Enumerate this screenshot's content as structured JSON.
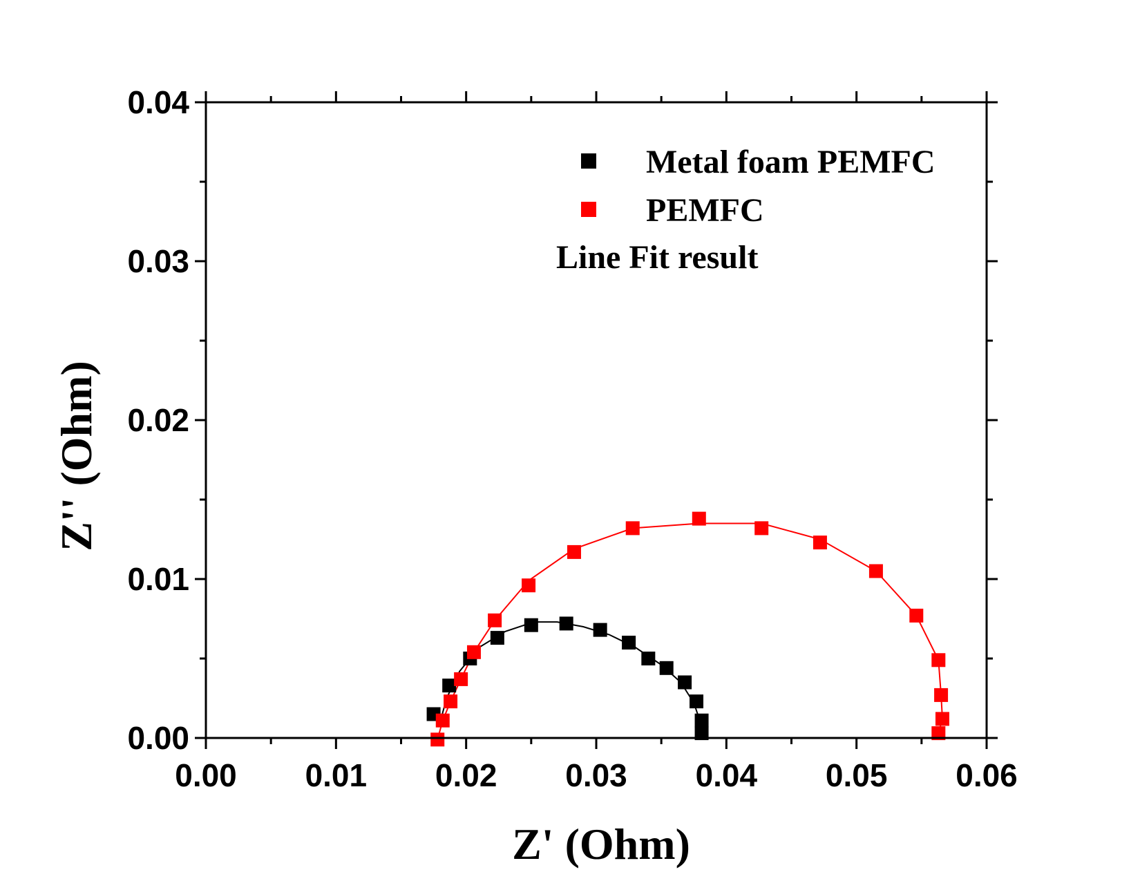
{
  "chart_data": {
    "type": "scatter",
    "title": "",
    "xlabel": "Z' (Ohm)",
    "ylabel": "Z'' (Ohm)",
    "xlim": [
      0,
      0.06
    ],
    "ylim": [
      0,
      0.04
    ],
    "x_ticks": [
      "0.00",
      "0.01",
      "0.02",
      "0.03",
      "0.04",
      "0.05",
      "0.06"
    ],
    "y_ticks": [
      "0.00",
      "0.01",
      "0.02",
      "0.03",
      "0.04"
    ],
    "grid": false,
    "legend_position": "top-right",
    "legend": {
      "entries": [
        "Metal  foam PEMFC",
        "PEMFC",
        "Line  Fit result"
      ]
    },
    "series": [
      {
        "name": "Metal  foam PEMFC",
        "color": "#000000",
        "marker": "square",
        "points": [
          [
            0.0175,
            0.0015
          ],
          [
            0.0187,
            0.0033
          ],
          [
            0.0203,
            0.005
          ],
          [
            0.0224,
            0.0063
          ],
          [
            0.025,
            0.0071
          ],
          [
            0.0277,
            0.0072
          ],
          [
            0.0303,
            0.0068
          ],
          [
            0.0325,
            0.006
          ],
          [
            0.034,
            0.005
          ],
          [
            0.0354,
            0.0044
          ],
          [
            0.0368,
            0.0035
          ],
          [
            0.0377,
            0.0023
          ],
          [
            0.0381,
            0.0011
          ],
          [
            0.0381,
            0.0003
          ]
        ],
        "fit": [
          [
            0.018,
            0.001
          ],
          [
            0.0185,
            0.0025
          ],
          [
            0.0195,
            0.0042
          ],
          [
            0.021,
            0.0057
          ],
          [
            0.023,
            0.0067
          ],
          [
            0.0252,
            0.0073
          ],
          [
            0.027,
            0.0073
          ],
          [
            0.029,
            0.007
          ],
          [
            0.031,
            0.0065
          ],
          [
            0.033,
            0.0057
          ],
          [
            0.035,
            0.0046
          ],
          [
            0.0365,
            0.0035
          ],
          [
            0.0375,
            0.0022
          ],
          [
            0.038,
            0.001
          ],
          [
            0.0382,
            0.0003
          ]
        ]
      },
      {
        "name": "PEMFC",
        "color": "#ff0000",
        "marker": "square",
        "points": [
          [
            0.0178,
            -0.0001
          ],
          [
            0.0182,
            0.0011
          ],
          [
            0.0188,
            0.0023
          ],
          [
            0.0196,
            0.0037
          ],
          [
            0.0206,
            0.0054
          ],
          [
            0.0222,
            0.0074
          ],
          [
            0.0248,
            0.0096
          ],
          [
            0.0283,
            0.0117
          ],
          [
            0.0328,
            0.0132
          ],
          [
            0.0379,
            0.0138
          ],
          [
            0.0427,
            0.0132
          ],
          [
            0.0472,
            0.0123
          ],
          [
            0.0515,
            0.0105
          ],
          [
            0.0546,
            0.0077
          ],
          [
            0.0563,
            0.0049
          ],
          [
            0.0565,
            0.0027
          ],
          [
            0.0566,
            0.0012
          ],
          [
            0.0563,
            0.0003
          ]
        ],
        "fit": [
          [
            0.0178,
            -0.0001
          ],
          [
            0.0182,
            0.0011
          ],
          [
            0.0188,
            0.0023
          ],
          [
            0.0196,
            0.0037
          ],
          [
            0.0206,
            0.0054
          ],
          [
            0.0222,
            0.0074
          ],
          [
            0.0248,
            0.0099
          ],
          [
            0.0283,
            0.0119
          ],
          [
            0.0328,
            0.0132
          ],
          [
            0.0379,
            0.0135
          ],
          [
            0.0427,
            0.0135
          ],
          [
            0.0472,
            0.0125
          ],
          [
            0.0515,
            0.0105
          ],
          [
            0.0546,
            0.0077
          ],
          [
            0.0563,
            0.0049
          ],
          [
            0.0565,
            0.0027
          ],
          [
            0.0566,
            0.0012
          ],
          [
            0.0563,
            0.0003
          ]
        ]
      }
    ]
  }
}
